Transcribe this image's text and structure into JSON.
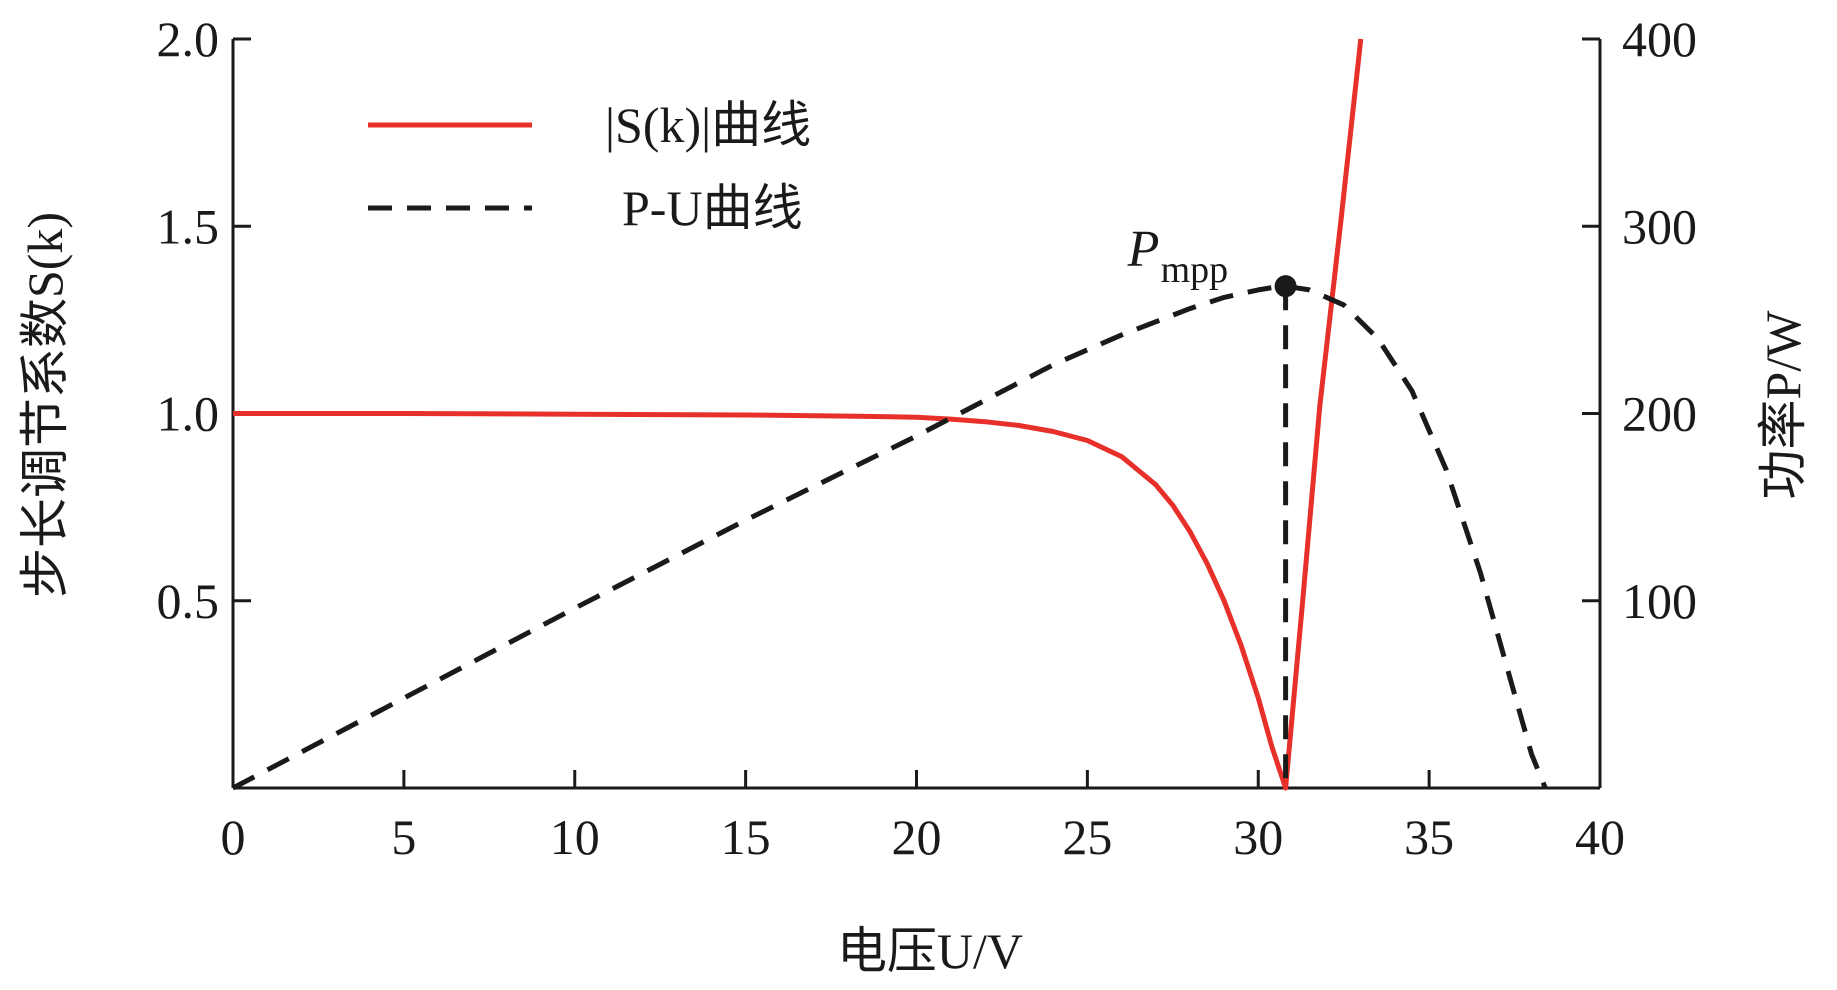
{
  "chart_data": {
    "type": "line",
    "xlabel": "电压U/V",
    "ylabel_left": "步长调节系数S(k)",
    "ylabel_right": "功率P/W",
    "xlim": [
      0,
      40
    ],
    "ylim_left": [
      0,
      2
    ],
    "ylim_right": [
      0,
      400
    ],
    "x_ticks": [
      "0",
      "5",
      "10",
      "15",
      "20",
      "25",
      "30",
      "35",
      "40"
    ],
    "y_left_ticks": [
      "0.5",
      "1.0",
      "1.5",
      "2.0"
    ],
    "y_right_ticks": [
      "100",
      "200",
      "300",
      "400"
    ],
    "grid": false,
    "legend_position": "top-left",
    "series": [
      {
        "name": "|S(k)|曲线",
        "axis": "left",
        "style": "solid",
        "color": "#e8302a",
        "x": [
          0,
          5,
          10,
          15,
          18,
          20,
          21,
          22,
          23,
          24,
          25,
          26,
          27,
          27.5,
          28,
          28.5,
          29,
          29.5,
          30,
          30.4,
          30.8,
          31.3,
          31.8,
          32.4,
          33.0
        ],
        "y": [
          1.0,
          1.0,
          0.998,
          0.996,
          0.993,
          0.99,
          0.985,
          0.978,
          0.968,
          0.952,
          0.928,
          0.885,
          0.81,
          0.755,
          0.685,
          0.6,
          0.5,
          0.38,
          0.24,
          0.11,
          0.0,
          0.5,
          1.02,
          1.5,
          2.0
        ]
      },
      {
        "name": "P-U曲线",
        "axis": "right",
        "style": "dashed",
        "color": "#1a1a1a",
        "x": [
          0,
          5,
          10,
          15,
          20,
          22,
          24,
          26,
          28,
          29,
          30,
          30.5,
          30.8,
          31.5,
          32.5,
          33.5,
          34.5,
          35.5,
          36.5,
          37.5,
          38.0,
          38.4
        ],
        "y": [
          0,
          48,
          96,
          143,
          188,
          207,
          226,
          242,
          256,
          262,
          266,
          267.5,
          268,
          266,
          258,
          240,
          212,
          170,
          115,
          50,
          18,
          0
        ]
      },
      {
        "name": "",
        "axis": "right",
        "style": "dashed",
        "color": "#1a1a1a",
        "x": [
          30.8,
          30.8
        ],
        "y": [
          268,
          0
        ]
      }
    ],
    "annotations": [
      {
        "label_main": "P",
        "label_sub": "mpp",
        "x": 30.8,
        "y_right": 268
      }
    ],
    "legend": [
      {
        "label": "|S(k)|曲线",
        "style": "solid",
        "color": "#e8302a"
      },
      {
        "label": "P-U曲线",
        "style": "dashed",
        "color": "#1a1a1a"
      }
    ]
  }
}
